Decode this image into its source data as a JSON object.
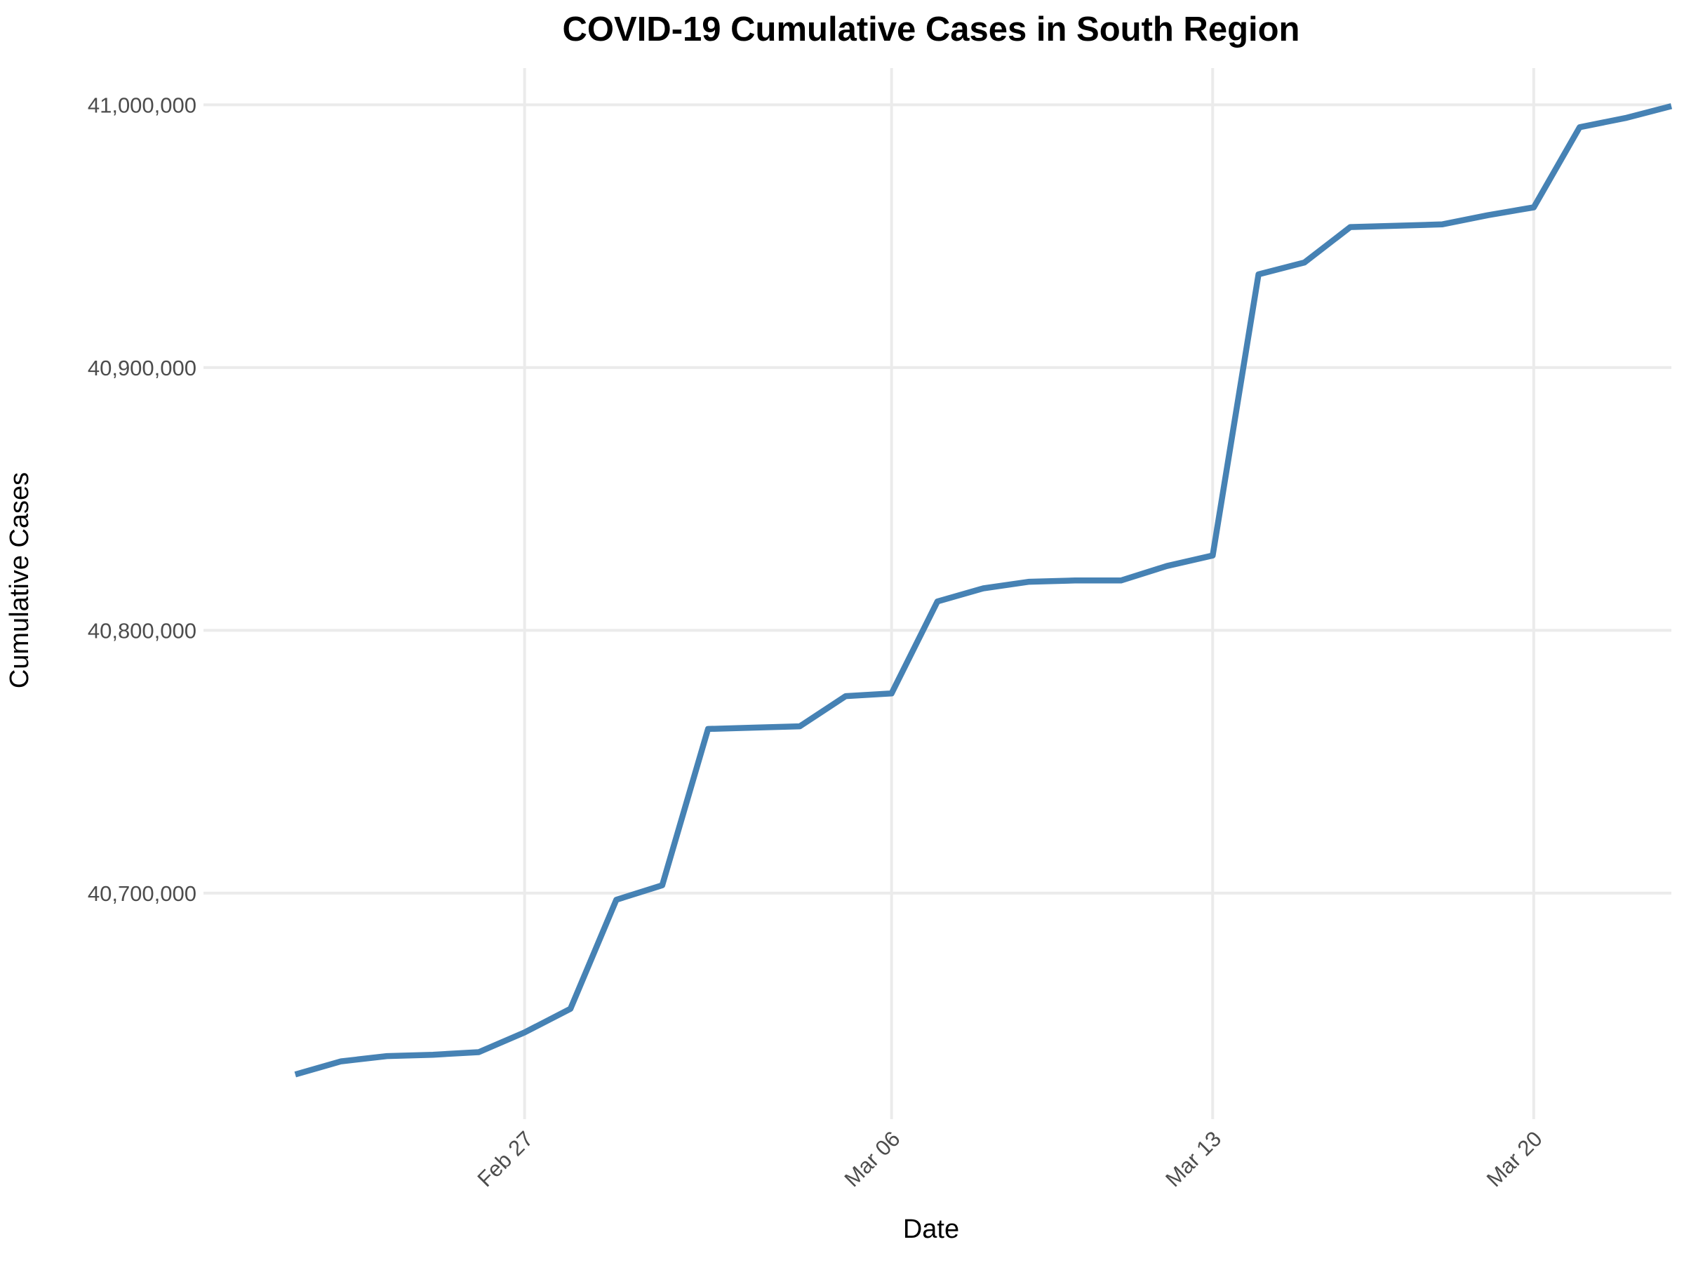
{
  "chart_data": {
    "type": "line",
    "title": "COVID-19 Cumulative Cases in South Region",
    "xlabel": "Date",
    "ylabel": "Cumulative Cases",
    "x_type": "date",
    "xlim": [
      "2020-02-20",
      "2020-03-23"
    ],
    "ylim": [
      40614000,
      41014000
    ],
    "x_ticks": [
      {
        "date": "2020-02-27",
        "label": "Feb 27"
      },
      {
        "date": "2020-03-06",
        "label": "Mar 06"
      },
      {
        "date": "2020-03-13",
        "label": "Mar 13"
      },
      {
        "date": "2020-03-20",
        "label": "Mar 20"
      }
    ],
    "y_ticks": [
      {
        "value": 40700000,
        "label": "40,700,000"
      },
      {
        "value": 40800000,
        "label": "40,800,000"
      },
      {
        "value": 40900000,
        "label": "40,900,000"
      },
      {
        "value": 41000000,
        "label": "41,000,000"
      }
    ],
    "grid": true,
    "legend": "none",
    "colors": {
      "line": "#4682b4",
      "grid": "#ebebeb"
    },
    "series": [
      {
        "x": [
          "2020-02-22",
          "2020-02-23",
          "2020-02-24",
          "2020-02-25",
          "2020-02-26",
          "2020-02-27",
          "2020-02-28",
          "2020-02-29",
          "2020-03-01",
          "2020-03-02",
          "2020-03-03",
          "2020-03-04",
          "2020-03-05",
          "2020-03-06",
          "2020-03-07",
          "2020-03-08",
          "2020-03-09",
          "2020-03-10",
          "2020-03-11",
          "2020-03-12",
          "2020-03-13",
          "2020-03-14",
          "2020-03-15",
          "2020-03-16",
          "2020-03-17",
          "2020-03-18",
          "2020-03-19",
          "2020-03-20",
          "2020-03-21",
          "2020-03-22",
          "2020-03-23"
        ],
        "values": [
          40631000,
          40636000,
          40638000,
          40638500,
          40639500,
          40647000,
          40656000,
          40697500,
          40703000,
          40762500,
          40763000,
          40763500,
          40775000,
          40776000,
          40811000,
          40816000,
          40818500,
          40819000,
          40819000,
          40824500,
          40828500,
          40935500,
          40940000,
          40953500,
          40954000,
          40954500,
          40958000,
          40961000,
          40991500,
          40995000,
          40999500
        ]
      }
    ]
  }
}
